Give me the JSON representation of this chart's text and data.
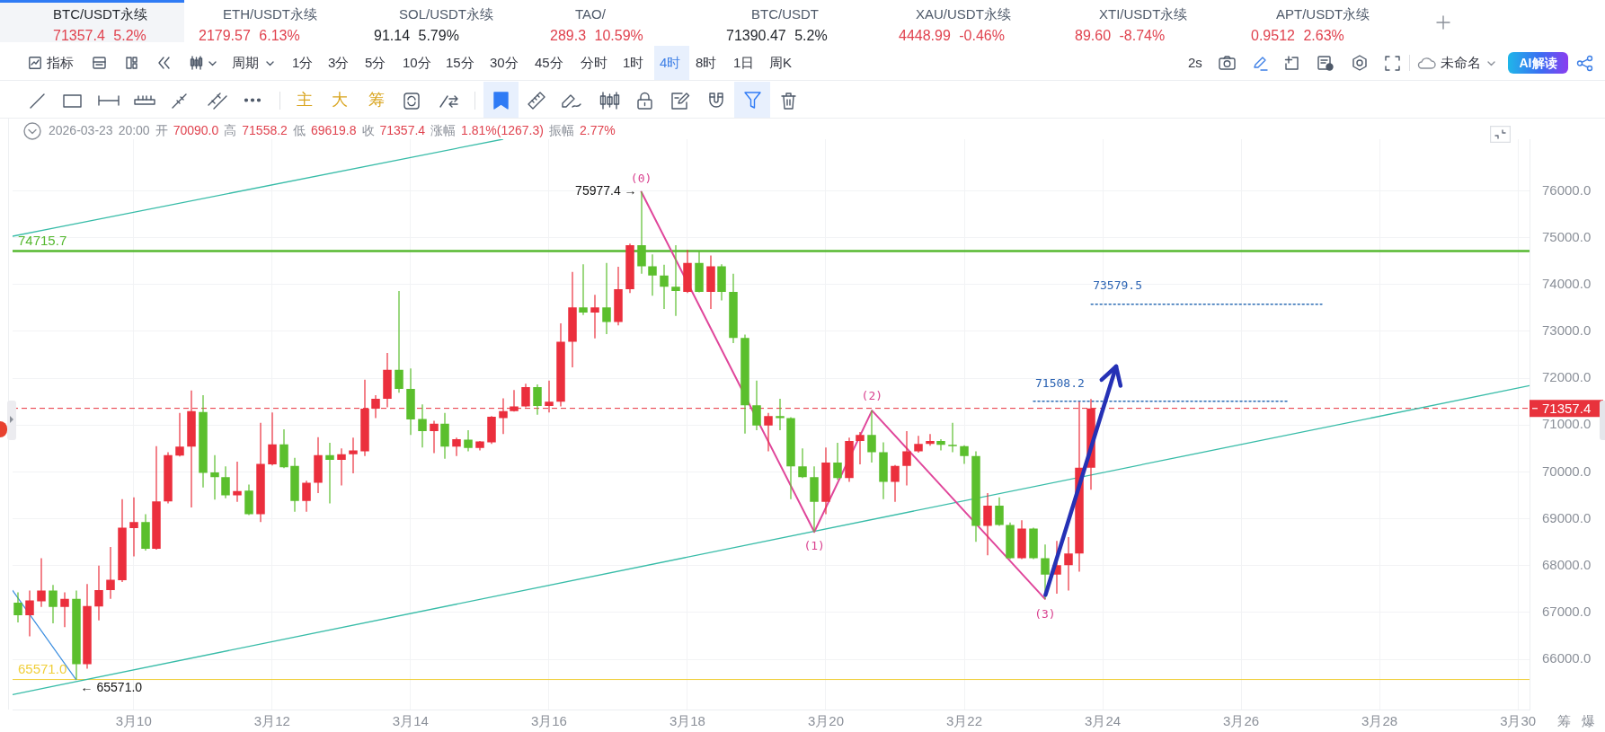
{
  "chart_data": {
    "type": "candlestick",
    "subtitle": "2026-03-23 20:00 开 70090.0 高 71558.2 低 69619.8 收 71357.4 涨幅 1.81%(1267.3) 振幅 2.77%",
    "annotations": [
      "BTC/USDT永续",
      "71357.4 5.2%",
      "ETH/USDT永续",
      "2179.57 6.13%",
      "SOL/USDT永续",
      "91.14 5.79%",
      "TAO/",
      "289.3 10.59%",
      "BTC/USDT",
      "71390.47 5.2%",
      "XAU/USDT永续",
      "4448.99 -0.46%",
      "XTI/USDT永续",
      "89.60 -8.74%",
      "APT/USDT永续",
      "0.9512 2.63%",
      "指标",
      "周期",
      "1分",
      "3分",
      "5分",
      "10分",
      "15分",
      "30分",
      "45分",
      "分时",
      "1时",
      "4时",
      "8时",
      "1日",
      "周K",
      "2s",
      "未命名",
      "AI解读",
      "主",
      "大",
      "筹",
      {
        "text": "(0)",
        "x": "2026-03-17T08:00",
        "y": 75977.4
      },
      {
        "text": "(1)",
        "x": "2026-03-19T20:00",
        "y": 68720
      },
      {
        "text": "(2)",
        "x": "2026-03-20T16:00",
        "y": 71310
      },
      {
        "text": "(3)",
        "x": "2026-03-23T04:00",
        "y": 67290
      },
      {
        "text": "75977.4 →",
        "x": "2026-03-17T08:00",
        "y": 75977.4
      },
      {
        "text": "← 65571.0",
        "x": "2026-03-09T04:00",
        "y": 65571
      },
      {
        "text": "71508.2",
        "x": "2026-03-23T00:00",
        "y": 71508.2
      },
      {
        "text": "73579.5",
        "x": "2026-03-23T20:00",
        "y": 73579.5
      },
      "筹",
      "爆"
    ],
    "xlim": [
      "2026-03-08T06:00",
      "2026-03-30T04:00"
    ],
    "xticks": [
      {
        "value": "2026-03-10",
        "label": "3月10"
      },
      {
        "value": "2026-03-12",
        "label": "3月12"
      },
      {
        "value": "2026-03-14",
        "label": "3月14"
      },
      {
        "value": "2026-03-16",
        "label": "3月16"
      },
      {
        "value": "2026-03-18",
        "label": "3月18"
      },
      {
        "value": "2026-03-20",
        "label": "3月20"
      },
      {
        "value": "2026-03-22",
        "label": "3月22"
      },
      {
        "value": "2026-03-24",
        "label": "3月24"
      },
      {
        "value": "2026-03-26",
        "label": "3月26"
      },
      {
        "value": "2026-03-28",
        "label": "3月28"
      },
      {
        "value": "2026-03-30",
        "label": "3月30"
      }
    ],
    "ylim": [
      64930,
      77100
    ],
    "yticks": [
      {
        "value": 66000,
        "label": "66000.0"
      },
      {
        "value": 67000,
        "label": "67000.0"
      },
      {
        "value": 68000,
        "label": "68000.0"
      },
      {
        "value": 69000,
        "label": "69000.0"
      },
      {
        "value": 70000,
        "label": "70000.0"
      },
      {
        "value": 71000,
        "label": "71000.0"
      },
      {
        "value": 72000,
        "label": "72000.0"
      },
      {
        "value": 73000,
        "label": "73000.0"
      },
      {
        "value": 74000,
        "label": "74000.0"
      },
      {
        "value": 75000,
        "label": "75000.0"
      },
      {
        "value": 76000,
        "label": "76000.0"
      }
    ],
    "grid": true,
    "ref_lines": [
      {
        "axis": "y",
        "value": 74715.7,
        "label": "74715.7",
        "color": "#55b82f"
      },
      {
        "axis": "y",
        "value": 65571,
        "label": "65571.0",
        "color": "#f0cf3a"
      },
      {
        "axis": "y",
        "value": 71357.4,
        "label": "71357.4",
        "color": "#e8323c",
        "line_style": "dashed"
      }
    ],
    "series": [
      {
        "x": [
          "2026-03-08T08:00",
          "2026-03-08T12:00",
          "2026-03-08T16:00",
          "2026-03-08T20:00",
          "2026-03-09T00:00",
          "2026-03-09T04:00",
          "2026-03-09T08:00",
          "2026-03-09T12:00",
          "2026-03-09T16:00",
          "2026-03-09T20:00",
          "2026-03-10T00:00",
          "2026-03-10T04:00",
          "2026-03-10T08:00",
          "2026-03-10T12:00",
          "2026-03-10T16:00",
          "2026-03-10T20:00",
          "2026-03-11T00:00",
          "2026-03-11T04:00",
          "2026-03-11T08:00",
          "2026-03-11T12:00",
          "2026-03-11T16:00",
          "2026-03-11T20:00",
          "2026-03-12T00:00",
          "2026-03-12T04:00",
          "2026-03-12T08:00",
          "2026-03-12T12:00",
          "2026-03-12T16:00",
          "2026-03-12T20:00",
          "2026-03-13T00:00",
          "2026-03-13T04:00",
          "2026-03-13T08:00",
          "2026-03-13T12:00",
          "2026-03-13T16:00",
          "2026-03-13T20:00",
          "2026-03-14T00:00",
          "2026-03-14T04:00",
          "2026-03-14T08:00",
          "2026-03-14T12:00",
          "2026-03-14T16:00",
          "2026-03-14T20:00",
          "2026-03-15T00:00",
          "2026-03-15T04:00",
          "2026-03-15T08:00",
          "2026-03-15T12:00",
          "2026-03-15T16:00",
          "2026-03-15T20:00",
          "2026-03-16T00:00",
          "2026-03-16T04:00",
          "2026-03-16T08:00",
          "2026-03-16T12:00",
          "2026-03-16T16:00",
          "2026-03-16T20:00",
          "2026-03-17T00:00",
          "2026-03-17T04:00",
          "2026-03-17T08:00",
          "2026-03-17T12:00",
          "2026-03-17T16:00",
          "2026-03-17T20:00",
          "2026-03-18T00:00",
          "2026-03-18T04:00",
          "2026-03-18T08:00",
          "2026-03-18T12:00",
          "2026-03-18T16:00",
          "2026-03-18T20:00",
          "2026-03-19T00:00",
          "2026-03-19T04:00",
          "2026-03-19T08:00",
          "2026-03-19T12:00",
          "2026-03-19T16:00",
          "2026-03-19T20:00",
          "2026-03-20T00:00",
          "2026-03-20T04:00",
          "2026-03-20T08:00",
          "2026-03-20T12:00",
          "2026-03-20T16:00",
          "2026-03-20T20:00",
          "2026-03-21T00:00",
          "2026-03-21T04:00",
          "2026-03-21T08:00",
          "2026-03-21T12:00",
          "2026-03-21T16:00",
          "2026-03-21T20:00",
          "2026-03-22T00:00",
          "2026-03-22T04:00",
          "2026-03-22T08:00",
          "2026-03-22T12:00",
          "2026-03-22T16:00",
          "2026-03-22T20:00",
          "2026-03-23T00:00",
          "2026-03-23T04:00",
          "2026-03-23T08:00",
          "2026-03-23T12:00",
          "2026-03-23T16:00",
          "2026-03-23T20:00"
        ],
        "ohlc": [
          [
            67210,
            67430,
            66790,
            66940
          ],
          [
            66940,
            67470,
            66490,
            67260
          ],
          [
            67240,
            68160,
            67120,
            67470
          ],
          [
            67470,
            67590,
            66770,
            67120
          ],
          [
            67120,
            67430,
            66690,
            67290
          ],
          [
            67290,
            67470,
            65571,
            65900
          ],
          [
            65900,
            67610,
            65800,
            67140
          ],
          [
            67130,
            68000,
            66830,
            67480
          ],
          [
            67480,
            68400,
            67290,
            67700
          ],
          [
            67690,
            69420,
            67650,
            68810
          ],
          [
            68800,
            69460,
            68200,
            68930
          ],
          [
            68930,
            69100,
            68320,
            68360
          ],
          [
            68360,
            70550,
            68340,
            69370
          ],
          [
            69370,
            70420,
            69330,
            70360
          ],
          [
            70350,
            71260,
            70330,
            70540
          ],
          [
            70540,
            71740,
            69240,
            71300
          ],
          [
            71280,
            71640,
            69670,
            69980
          ],
          [
            69990,
            70360,
            69410,
            69890
          ],
          [
            69890,
            70120,
            69440,
            69500
          ],
          [
            69500,
            70220,
            69360,
            69590
          ],
          [
            69600,
            69730,
            69080,
            69100
          ],
          [
            69100,
            71050,
            68930,
            70170
          ],
          [
            70160,
            71270,
            70140,
            70590
          ],
          [
            70590,
            70910,
            70080,
            70100
          ],
          [
            70130,
            70300,
            69150,
            69380
          ],
          [
            69380,
            69810,
            69150,
            69770
          ],
          [
            69770,
            70740,
            69550,
            70360
          ],
          [
            70360,
            70620,
            69330,
            70260
          ],
          [
            70260,
            70500,
            69710,
            70380
          ],
          [
            70380,
            70730,
            69970,
            70460
          ],
          [
            70440,
            71970,
            70340,
            71350
          ],
          [
            71350,
            71640,
            71150,
            71560
          ],
          [
            71560,
            72540,
            71380,
            72180
          ],
          [
            72180,
            73860,
            71690,
            71770
          ],
          [
            71770,
            72210,
            70790,
            71120
          ],
          [
            71130,
            71440,
            70520,
            70870
          ],
          [
            70870,
            71090,
            70400,
            71030
          ],
          [
            71030,
            71260,
            70280,
            70540
          ],
          [
            70540,
            70730,
            70340,
            70700
          ],
          [
            70690,
            70890,
            70440,
            70510
          ],
          [
            70510,
            70660,
            70460,
            70650
          ],
          [
            70630,
            71190,
            70600,
            71180
          ],
          [
            71150,
            71570,
            70810,
            71300
          ],
          [
            71300,
            71750,
            71290,
            71400
          ],
          [
            71400,
            71880,
            71380,
            71810
          ],
          [
            71810,
            71870,
            71220,
            71410
          ],
          [
            71410,
            71950,
            71270,
            71500
          ],
          [
            71500,
            73170,
            71400,
            72780
          ],
          [
            72780,
            74270,
            72230,
            73510
          ],
          [
            73510,
            74430,
            73350,
            73400
          ],
          [
            73400,
            73780,
            72850,
            73510
          ],
          [
            73510,
            74460,
            72940,
            73200
          ],
          [
            73200,
            74380,
            73130,
            73900
          ],
          [
            73900,
            74870,
            73820,
            74840
          ],
          [
            74840,
            75977.4,
            74230,
            74390
          ],
          [
            74390,
            74640,
            73760,
            74190
          ],
          [
            74190,
            74420,
            73480,
            73950
          ],
          [
            73950,
            74840,
            73330,
            73860
          ],
          [
            73840,
            74740,
            73820,
            74460
          ],
          [
            74460,
            74720,
            73830,
            73840
          ],
          [
            73840,
            74620,
            73480,
            74390
          ],
          [
            74390,
            74430,
            73660,
            73840
          ],
          [
            73840,
            74230,
            72750,
            72860
          ],
          [
            72860,
            72930,
            70820,
            71420
          ],
          [
            71420,
            71950,
            70890,
            70990
          ],
          [
            70990,
            71260,
            70440,
            71190
          ],
          [
            71190,
            71560,
            70890,
            71150
          ],
          [
            71150,
            71170,
            69420,
            70120
          ],
          [
            70120,
            70500,
            69870,
            69890
          ],
          [
            69890,
            70120,
            68720,
            69360
          ],
          [
            69360,
            70520,
            69100,
            70200
          ],
          [
            70200,
            70620,
            69830,
            69870
          ],
          [
            69870,
            70730,
            69790,
            70660
          ],
          [
            70660,
            70850,
            70160,
            70790
          ],
          [
            70790,
            71310,
            70200,
            70420
          ],
          [
            70420,
            70630,
            69420,
            69790
          ],
          [
            69790,
            70150,
            69360,
            70130
          ],
          [
            70130,
            70870,
            69710,
            70440
          ],
          [
            70440,
            70770,
            70410,
            70600
          ],
          [
            70600,
            70810,
            70560,
            70660
          ],
          [
            70660,
            70700,
            70460,
            70580
          ],
          [
            70580,
            71050,
            70420,
            70550
          ],
          [
            70550,
            70570,
            70170,
            70340
          ],
          [
            70340,
            70440,
            68510,
            68850
          ],
          [
            68850,
            69550,
            68220,
            69280
          ],
          [
            69280,
            69460,
            68850,
            68870
          ],
          [
            68870,
            68920,
            68140,
            68160
          ],
          [
            68160,
            68970,
            68140,
            68790
          ],
          [
            68790,
            68810,
            68140,
            68160
          ],
          [
            68160,
            68450,
            67290,
            67810
          ],
          [
            67810,
            68530,
            67400,
            68010
          ],
          [
            68010,
            68610,
            67470,
            68260
          ],
          [
            68260,
            71500,
            67870,
            70090
          ],
          [
            70090,
            71558.2,
            69619.8,
            71357.4
          ]
        ],
        "colors": [
          "#5bbf2d",
          "#eb2f3d",
          "#eb2f3d",
          "#5bbf2d",
          "#eb2f3d",
          "#5bbf2d",
          "#eb2f3d",
          "#eb2f3d",
          "#eb2f3d",
          "#eb2f3d",
          "#eb2f3d",
          "#5bbf2d",
          "#eb2f3d",
          "#eb2f3d",
          "#eb2f3d",
          "#eb2f3d",
          "#5bbf2d",
          "#5bbf2d",
          "#5bbf2d",
          "#eb2f3d",
          "#5bbf2d",
          "#eb2f3d",
          "#eb2f3d",
          "#5bbf2d",
          "#5bbf2d",
          "#eb2f3d",
          "#eb2f3d",
          "#5bbf2d",
          "#eb2f3d",
          "#eb2f3d",
          "#eb2f3d",
          "#eb2f3d",
          "#eb2f3d",
          "#5bbf2d",
          "#5bbf2d",
          "#5bbf2d",
          "#eb2f3d",
          "#5bbf2d",
          "#eb2f3d",
          "#5bbf2d",
          "#eb2f3d",
          "#eb2f3d",
          "#eb2f3d",
          "#eb2f3d",
          "#eb2f3d",
          "#5bbf2d",
          "#eb2f3d",
          "#eb2f3d",
          "#eb2f3d",
          "#5bbf2d",
          "#eb2f3d",
          "#5bbf2d",
          "#eb2f3d",
          "#eb2f3d",
          "#5bbf2d",
          "#5bbf2d",
          "#5bbf2d",
          "#5bbf2d",
          "#eb2f3d",
          "#5bbf2d",
          "#eb2f3d",
          "#5bbf2d",
          "#5bbf2d",
          "#5bbf2d",
          "#5bbf2d",
          "#eb2f3d",
          "#5bbf2d",
          "#5bbf2d",
          "#5bbf2d",
          "#5bbf2d",
          "#eb2f3d",
          "#5bbf2d",
          "#eb2f3d",
          "#eb2f3d",
          "#5bbf2d",
          "#5bbf2d",
          "#eb2f3d",
          "#eb2f3d",
          "#eb2f3d",
          "#eb2f3d",
          "#5bbf2d",
          "#5bbf2d",
          "#5bbf2d",
          "#5bbf2d",
          "#eb2f3d",
          "#5bbf2d",
          "#5bbf2d",
          "#eb2f3d",
          "#5bbf2d",
          "#5bbf2d",
          "#eb2f3d",
          "#eb2f3d",
          "#eb2f3d",
          "#eb2f3d"
        ]
      },
      {
        "type": "line",
        "x": [
          "2026-03-17T08:00",
          "2026-03-19T20:00",
          "2026-03-20T16:00",
          "2026-03-23T04:00"
        ],
        "values": [
          75977.4,
          68720,
          71310,
          67290
        ],
        "color": "#e0479b"
      },
      {
        "type": "line",
        "x": [
          "2026-03-08T06:00",
          "2026-03-30T04:00"
        ],
        "values": [
          65250,
          71840
        ],
        "color": "#38bca8"
      },
      {
        "type": "line",
        "x": [
          "2026-03-08T06:00",
          "2026-03-15T08:00"
        ],
        "values": [
          75030,
          77100
        ],
        "color": "#38bca8"
      },
      {
        "type": "line",
        "x": [
          "2026-03-08T06:00",
          "2026-03-09T04:00"
        ],
        "values": [
          67470,
          65571
        ],
        "color": "#3d8fe0"
      },
      {
        "type": "line",
        "x": [
          "2026-03-23T00:00",
          "2026-03-26T16:00"
        ],
        "values": [
          71508.2,
          71508.2
        ],
        "color": "#2d6db5",
        "line_style": "dotted"
      },
      {
        "type": "line",
        "x": [
          "2026-03-23T20:00",
          "2026-03-27T04:00"
        ],
        "values": [
          73579.5,
          73579.5
        ],
        "color": "#2d6db5",
        "line_style": "dotted"
      }
    ]
  }
}
